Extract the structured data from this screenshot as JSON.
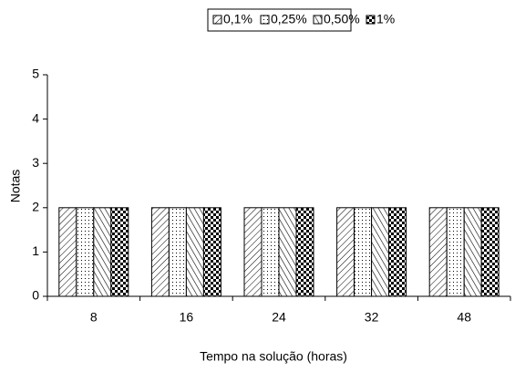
{
  "chart_data": {
    "type": "bar",
    "categories": [
      "8",
      "16",
      "24",
      "32",
      "48"
    ],
    "series": [
      {
        "name": "0,1%",
        "color": "#000000",
        "pattern": "hatch",
        "values": [
          2,
          2,
          2,
          2,
          2
        ]
      },
      {
        "name": "0,25%",
        "color": "#000000",
        "pattern": "dots",
        "values": [
          2,
          2,
          2,
          2,
          2
        ]
      },
      {
        "name": "0,50%",
        "color": "#000000",
        "pattern": "backhatch",
        "values": [
          2,
          2,
          2,
          2,
          2
        ]
      },
      {
        "name": "1%",
        "color": "#000000",
        "pattern": "checker",
        "values": [
          2,
          2,
          2,
          2,
          2
        ]
      }
    ],
    "ylim": [
      0,
      5
    ],
    "yticks": [
      0,
      1,
      2,
      3,
      4,
      5
    ],
    "xlabel": "Tempo na solução (horas)",
    "ylabel": "Notas",
    "legend": "top",
    "grid": false
  }
}
